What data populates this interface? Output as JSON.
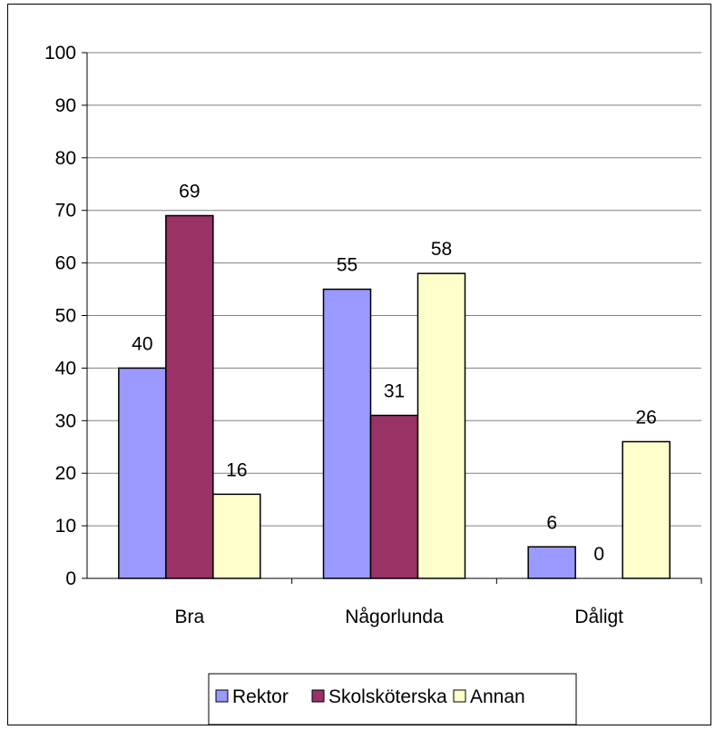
{
  "chart_data": {
    "type": "bar",
    "categories": [
      "Bra",
      "Någorlunda",
      "Dåligt"
    ],
    "series": [
      {
        "name": "Rektor",
        "values": [
          40,
          55,
          6
        ],
        "color": "#9999ff"
      },
      {
        "name": "Skolsköterska",
        "values": [
          69,
          31,
          0
        ],
        "color": "#993366"
      },
      {
        "name": "Annan",
        "values": [
          16,
          58,
          26
        ],
        "color": "#ffffcc"
      }
    ],
    "ylim": [
      0,
      100
    ],
    "yticks": [
      0,
      10,
      20,
      30,
      40,
      50,
      60,
      70,
      80,
      90,
      100
    ],
    "grid": true,
    "legend_position": "bottom",
    "data_labels": true
  }
}
